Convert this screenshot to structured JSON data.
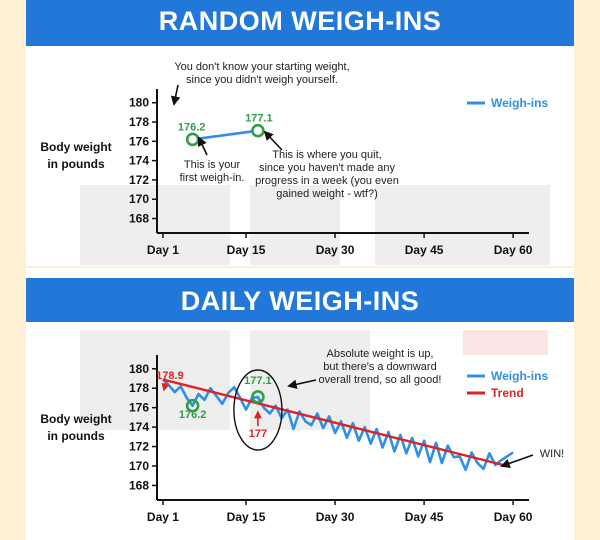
{
  "colors": {
    "banner": "#2178d8",
    "weighins": "#2f8fe6",
    "trend": "#dd2323",
    "highlight": "#2ea043",
    "page": "#fdf0d5"
  },
  "chart_data": [
    {
      "type": "line",
      "title": "RANDOM WEIGH-INS",
      "ylabel": "Body weight in pounds",
      "ylabel_lines": [
        "Body weight",
        "in pounds"
      ],
      "xlabel": "",
      "x_tick_labels": [
        "Day 1",
        "Day 15",
        "Day 30",
        "Day 45",
        "Day 60"
      ],
      "x_tick_values": [
        1,
        15,
        30,
        45,
        60
      ],
      "y_ticks": [
        168,
        170,
        172,
        174,
        176,
        178,
        180
      ],
      "xlim": [
        0,
        62
      ],
      "ylim": [
        166.5,
        180.8
      ],
      "grid": false,
      "legend": "top-right",
      "series": [
        {
          "name": "Weigh-ins",
          "color": "#2f8fe6",
          "x": [
            6,
            17
          ],
          "y": [
            176.2,
            177.1
          ]
        }
      ],
      "point_labels": [
        {
          "text": "176.2",
          "x": 6,
          "y": 176.2
        },
        {
          "text": "177.1",
          "x": 17,
          "y": 177.1
        }
      ],
      "annotations": [
        [
          "You don't know your starting weight,",
          "since you didn't weigh yourself."
        ],
        [
          "This is your",
          "first weigh-in."
        ],
        [
          "This is where you quit,",
          "since you haven't made any",
          "progress in a week (you even",
          "gained weight - wtf?)"
        ]
      ]
    },
    {
      "type": "line",
      "title": "DAILY WEIGH-INS",
      "ylabel": "Body weight in pounds",
      "ylabel_lines": [
        "Body weight",
        "in pounds"
      ],
      "xlabel": "",
      "x_tick_labels": [
        "Day 1",
        "Day 15",
        "Day 30",
        "Day 45",
        "Day 60"
      ],
      "x_tick_values": [
        1,
        15,
        30,
        45,
        60
      ],
      "y_ticks": [
        168,
        170,
        172,
        174,
        176,
        178,
        180
      ],
      "xlim": [
        0,
        62
      ],
      "ylim": [
        166.5,
        180.8
      ],
      "grid": false,
      "legend": "top-right",
      "series": [
        {
          "name": "Weigh-ins",
          "color": "#2f8fe6",
          "x": [
            1,
            2,
            3,
            4,
            5,
            6,
            7,
            8,
            9,
            10,
            11,
            12,
            13,
            14,
            15,
            16,
            17,
            18,
            19,
            20,
            21,
            22,
            23,
            24,
            25,
            26,
            27,
            28,
            29,
            30,
            31,
            32,
            33,
            34,
            35,
            36,
            37,
            38,
            39,
            40,
            41,
            42,
            43,
            44,
            45,
            46,
            47,
            48,
            49,
            50,
            51,
            52,
            53,
            54,
            55,
            56,
            57,
            58,
            59,
            60
          ],
          "y": [
            178.9,
            178.3,
            177.6,
            178.2,
            177.0,
            176.2,
            177.4,
            176.8,
            178.0,
            177.2,
            176.4,
            177.5,
            178.1,
            177.0,
            175.8,
            177.0,
            177.1,
            176.0,
            175.4,
            176.2,
            174.9,
            175.8,
            173.8,
            175.6,
            174.6,
            174.2,
            175.4,
            173.9,
            175.1,
            173.4,
            174.6,
            172.9,
            174.4,
            172.6,
            174.0,
            172.3,
            173.8,
            171.9,
            173.5,
            171.5,
            173.2,
            171.3,
            172.9,
            171.0,
            172.6,
            170.4,
            172.4,
            170.3,
            172.1,
            170.9,
            171.0,
            169.6,
            171.4,
            170.3,
            169.7,
            171.3,
            170.1,
            170.6,
            171.0,
            171.4
          ]
        },
        {
          "name": "Trend",
          "color": "#dd2323",
          "x": [
            1,
            59
          ],
          "y": [
            178.9,
            170.0
          ]
        }
      ],
      "point_labels": [
        {
          "text": "178.9",
          "x": 1,
          "y": 178.9
        },
        {
          "text": "176.2",
          "x": 6,
          "y": 176.2
        },
        {
          "text": "177.1",
          "x": 17,
          "y": 177.1
        },
        {
          "text": "177",
          "x": 17,
          "y": 176.0
        }
      ],
      "annotations": [
        [
          "Absolute weight is up,",
          "but there's a downward",
          "overall trend, so all good!"
        ],
        [
          "WIN!"
        ]
      ]
    }
  ]
}
